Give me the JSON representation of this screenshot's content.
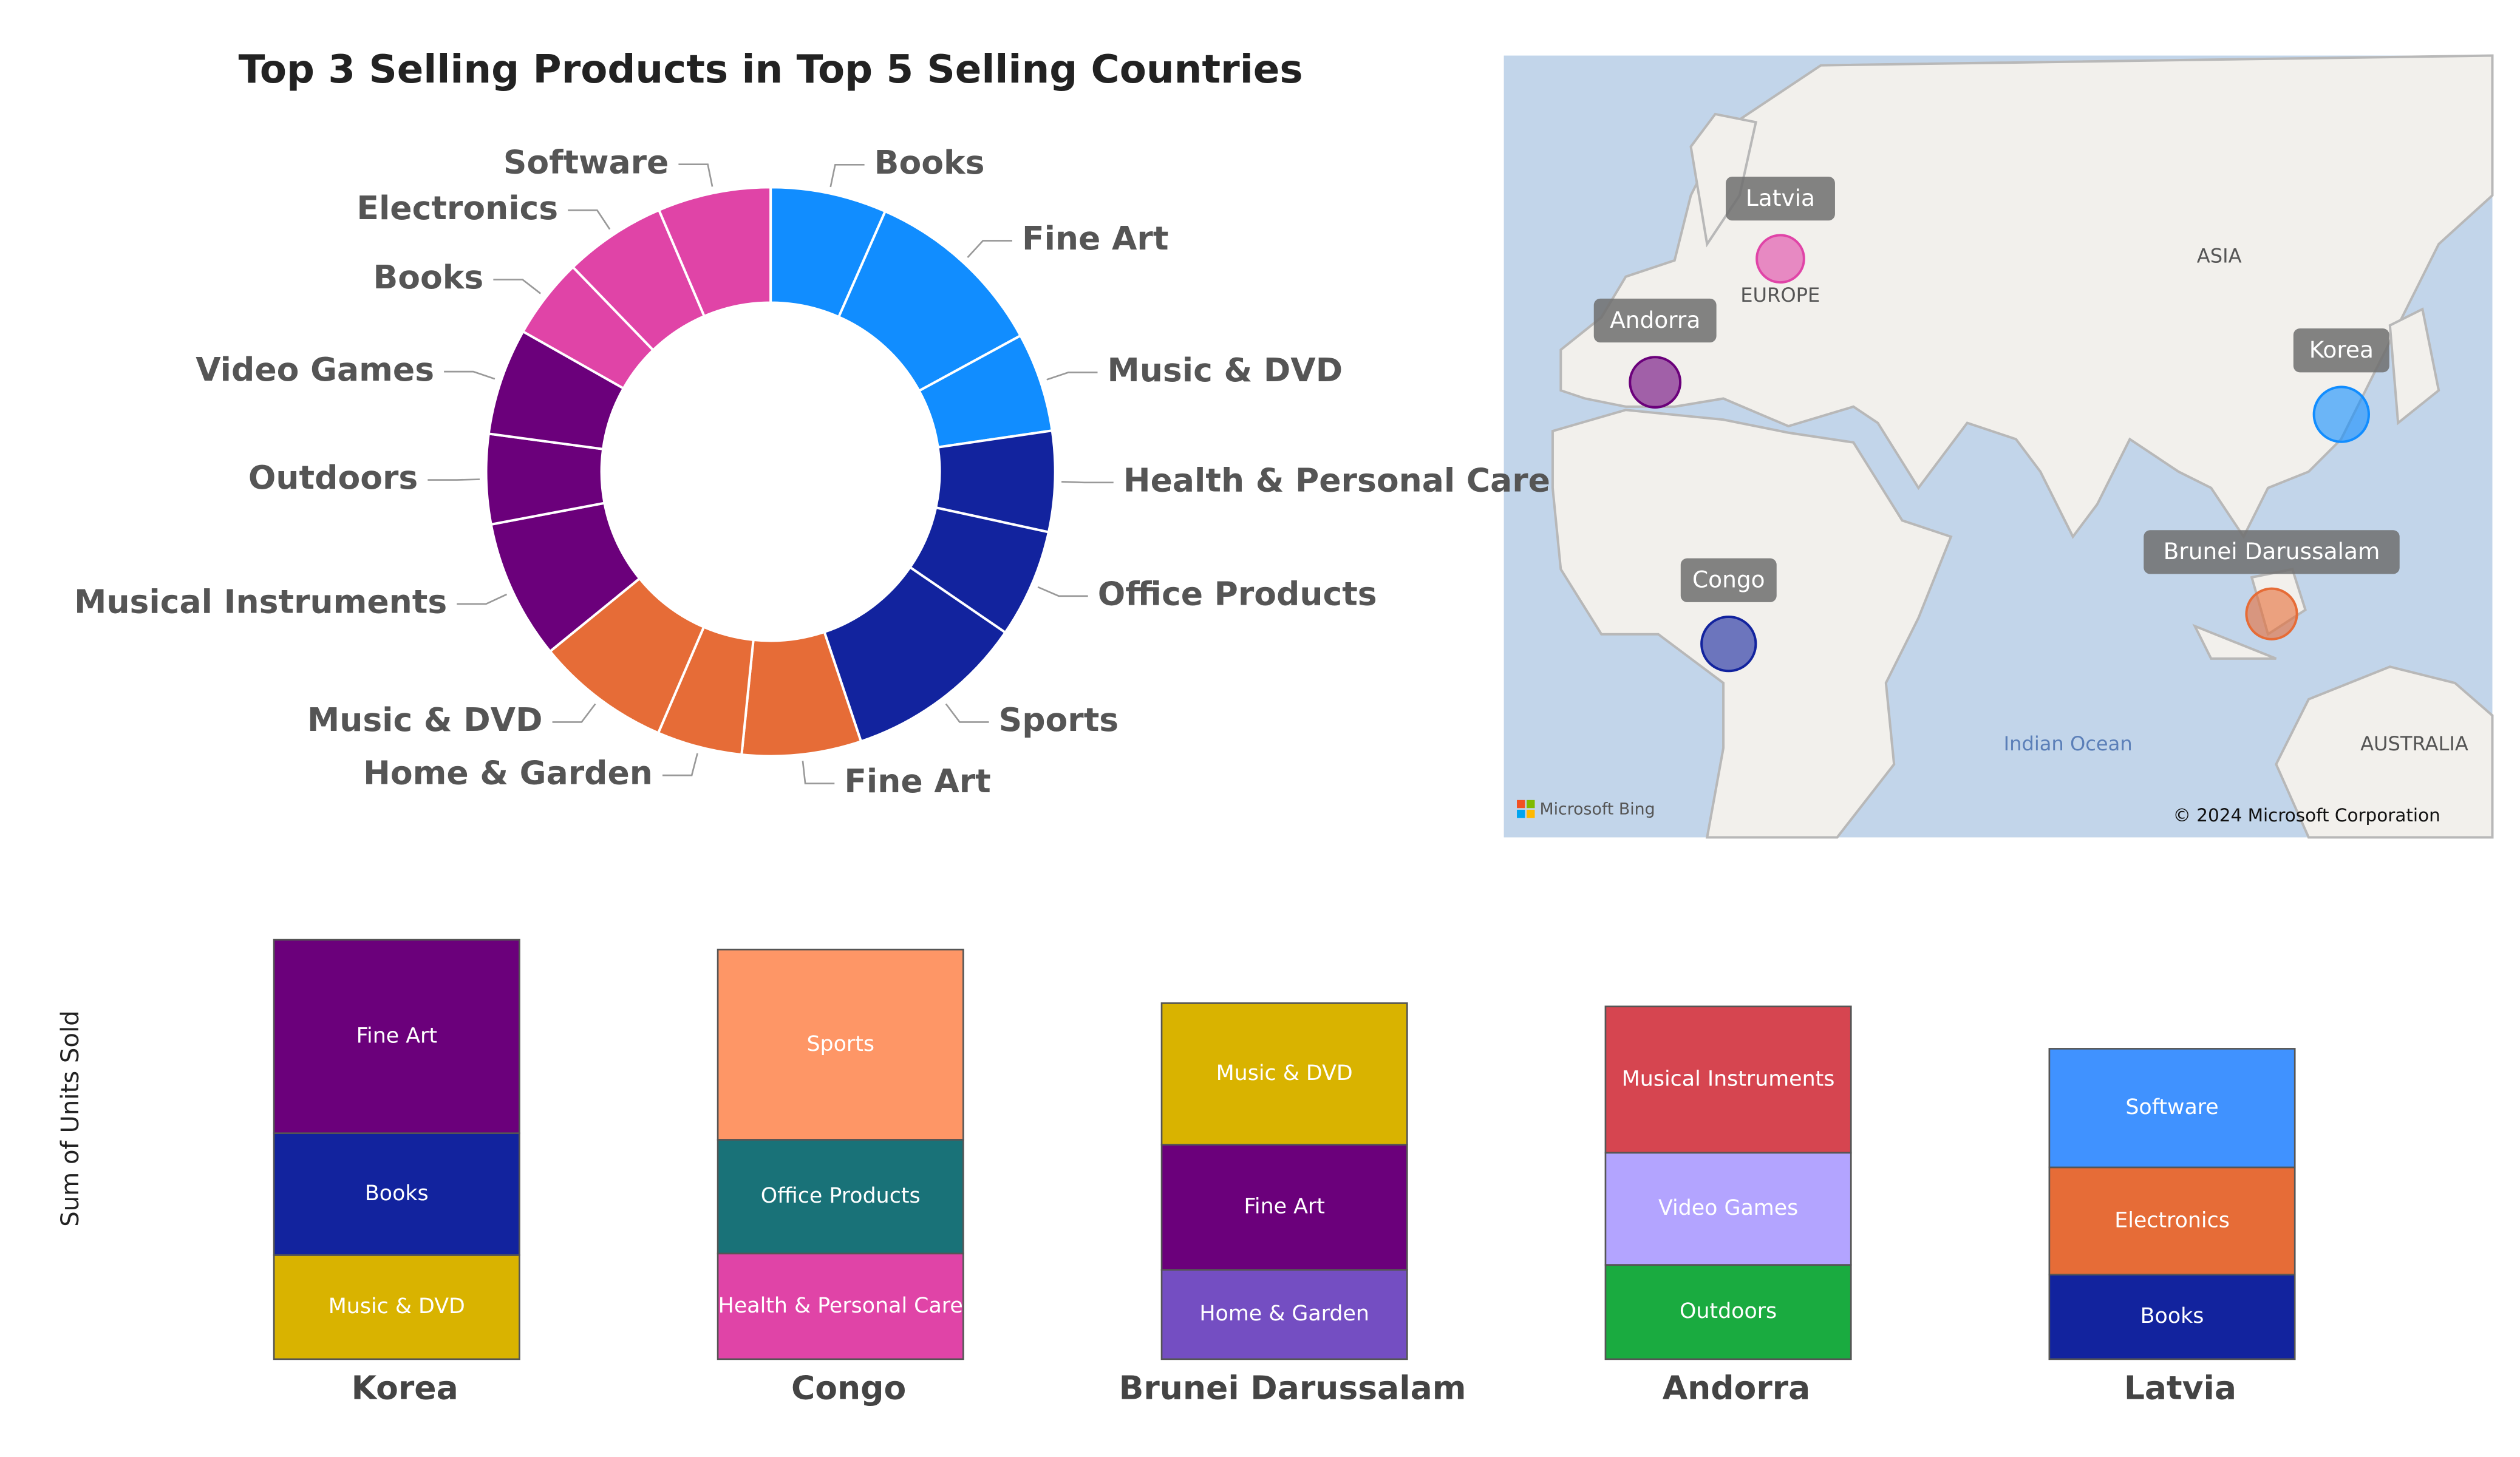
{
  "chart_data": [
    {
      "type": "pie",
      "title": "Top 3 Selling Products in Top 5 Selling Countries",
      "categories": [
        "Books",
        "Fine Art",
        "Music & DVD",
        "Health & Personal Care",
        "Office Products",
        "Sports",
        "Fine Art",
        "Home & Garden",
        "Music & DVD",
        "Musical Instruments",
        "Outdoors",
        "Video Games",
        "Books",
        "Electronics",
        "Software"
      ],
      "values": [
        75,
        119,
        64,
        65,
        70,
        117,
        77,
        55,
        87,
        90,
        58,
        69,
        52,
        66,
        73
      ],
      "colors": [
        "#118DFF",
        "#118DFF",
        "#118DFF",
        "#12239E",
        "#12239E",
        "#12239E",
        "#E66C37",
        "#E66C37",
        "#E66C37",
        "#6B007B",
        "#6B007B",
        "#6B007B",
        "#E044A7",
        "#E044A7",
        "#E044A7"
      ]
    },
    {
      "type": "map",
      "points": [
        {
          "name": "Latvia",
          "lon": 24.5,
          "lat": 57,
          "value": 191,
          "color": "#E044A7"
        },
        {
          "name": "Andorra",
          "lon": 1.5,
          "lat": 42.5,
          "value": 217,
          "color": "#6B007B"
        },
        {
          "name": "Korea",
          "lon": 127.5,
          "lat": 38,
          "value": 258,
          "color": "#118DFF"
        },
        {
          "name": "Brunei Darussalam",
          "lon": 114.7,
          "lat": 4.5,
          "value": 219,
          "color": "#E66C37"
        },
        {
          "name": "Congo",
          "lon": 15,
          "lat": -1,
          "value": 252,
          "color": "#12239E"
        }
      ],
      "labels": [
        "EUROPE",
        "ASIA",
        "Indian Ocean",
        "AUSTRALIA"
      ],
      "logo": "Microsoft Bing",
      "attribution": "© 2024 Microsoft Corporation"
    },
    {
      "type": "stacked-bar",
      "y_label": "Sum of Units Sold",
      "ylim": [
        0,
        270
      ],
      "categories": [
        "Korea",
        "Congo",
        "Brunei Darussalam",
        "Andorra",
        "Latvia"
      ],
      "stacks": [
        [
          {
            "name": "Music & DVD",
            "color": "#D9B300",
            "value": 64
          },
          {
            "name": "Books",
            "color": "#12239E",
            "value": 75
          },
          {
            "name": "Fine Art",
            "color": "#6B007B",
            "value": 119
          }
        ],
        [
          {
            "name": "Health & Personal Care",
            "color": "#E044A7",
            "value": 65
          },
          {
            "name": "Office Products",
            "color": "#197278",
            "value": 70
          },
          {
            "name": "Sports",
            "color": "#FE9666",
            "value": 117
          }
        ],
        [
          {
            "name": "Home & Garden",
            "color": "#744EC2",
            "value": 55
          },
          {
            "name": "Fine Art",
            "color": "#6B007B",
            "value": 77
          },
          {
            "name": "Music & DVD",
            "color": "#D9B300",
            "value": 87
          }
        ],
        [
          {
            "name": "Outdoors",
            "color": "#1AAB40",
            "value": 58
          },
          {
            "name": "Video Games",
            "color": "#B3A4FF",
            "value": 69
          },
          {
            "name": "Musical Instruments",
            "color": "#D64550",
            "value": 90
          }
        ],
        [
          {
            "name": "Books",
            "color": "#12239E",
            "value": 52
          },
          {
            "name": "Electronics",
            "color": "#E66C37",
            "value": 66
          },
          {
            "name": "Software",
            "color": "#4092FF",
            "value": 73
          }
        ]
      ]
    }
  ]
}
